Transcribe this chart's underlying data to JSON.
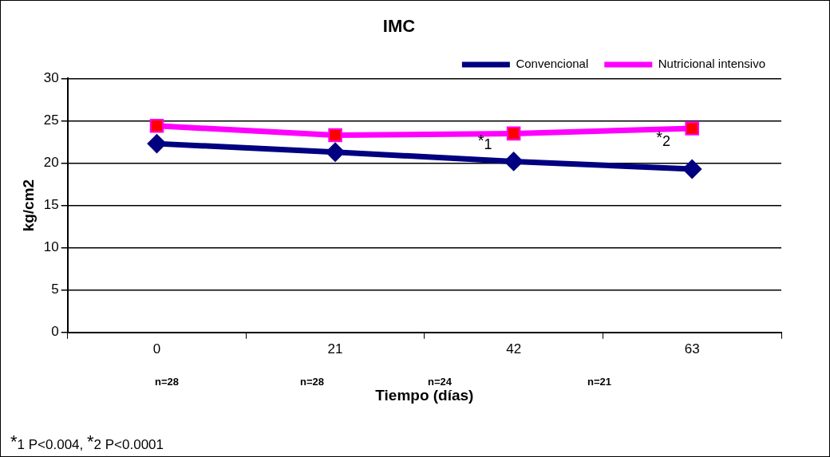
{
  "chart_data": {
    "type": "line",
    "title": "IMC",
    "xlabel": "Tiempo (días)",
    "ylabel": "kg/cm2",
    "categories": [
      "0",
      "21",
      "42",
      "63"
    ],
    "series": [
      {
        "name": "Convencional",
        "color": "#000080",
        "values": [
          22.3,
          21.3,
          20.2,
          19.3
        ],
        "marker": "diamond"
      },
      {
        "name": "Nutricional intensivo",
        "color": "#ff00ff",
        "values": [
          24.4,
          23.3,
          23.5,
          24.1
        ],
        "marker": "square"
      }
    ],
    "ylim": [
      0,
      30
    ],
    "yticks": [
      0,
      5,
      10,
      15,
      20,
      25,
      30
    ],
    "grid": "y",
    "legend": "top right",
    "line_style": "solid",
    "annotations": [
      "*1",
      "*2",
      "n=28",
      "n=28",
      "n=24",
      "n=21",
      "*1 P<0.004, *2 P<0.0001"
    ]
  }
}
